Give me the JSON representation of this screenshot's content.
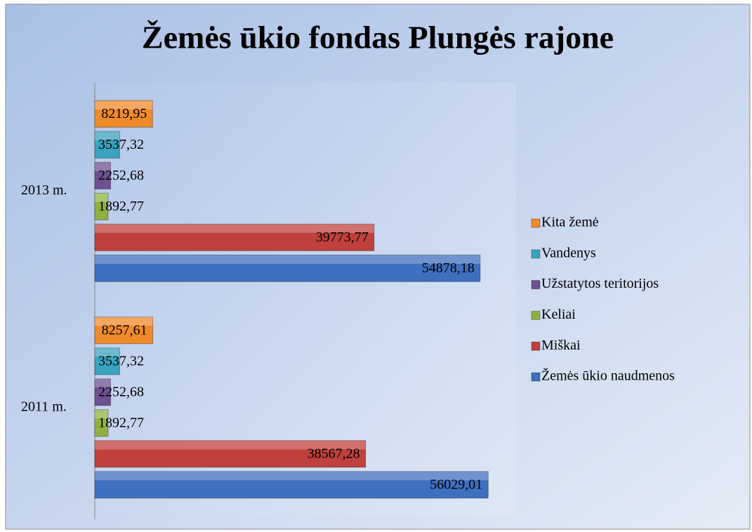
{
  "chart_data": {
    "type": "bar",
    "orientation": "horizontal",
    "title": "Žemės ūkio fondas  Plungės rajone",
    "categories": [
      "2011 m.",
      "2013 m."
    ],
    "series": [
      {
        "name": "Žemės ūkio naudmenos",
        "color": "#3f6fbf",
        "values": [
          56029.01,
          54878.18
        ],
        "value_labels": [
          "56029,01",
          "54878,18"
        ]
      },
      {
        "name": "Miškai",
        "color": "#c0403b",
        "values": [
          38567.28,
          39773.77
        ],
        "value_labels": [
          "38567,28",
          "39773,77"
        ]
      },
      {
        "name": "Keliai",
        "color": "#8fb23e",
        "values": [
          1892.77,
          1892.77
        ],
        "value_labels": [
          "1892,77",
          "1892,77"
        ]
      },
      {
        "name": "Užstatytos teritorijos",
        "color": "#6e4f94",
        "values": [
          2252.68,
          2252.68
        ],
        "value_labels": [
          "2252,68",
          "2252,68"
        ]
      },
      {
        "name": "Vandenys",
        "color": "#3aa3bf",
        "values": [
          3537.32,
          3537.32
        ],
        "value_labels": [
          "3537,32",
          "3537,32"
        ]
      },
      {
        "name": "Kita žemė",
        "color": "#f08a2a",
        "values": [
          8257.61,
          8219.95
        ],
        "value_labels": [
          "8257,61",
          "8219,95"
        ]
      }
    ],
    "xlim": [
      0,
      60000
    ],
    "legend": "right"
  }
}
